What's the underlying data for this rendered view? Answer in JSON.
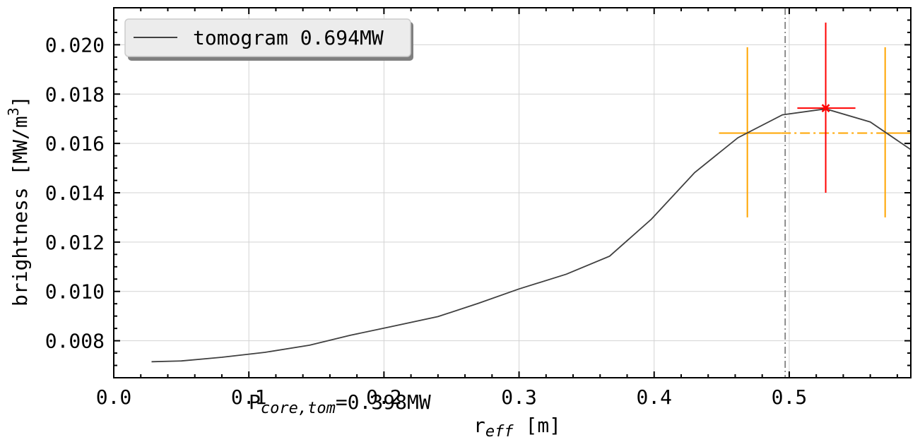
{
  "chart_data": {
    "type": "line",
    "title": "",
    "xlabel_base": "r",
    "xlabel_sub": "eff",
    "xlabel_tail": " [m]",
    "ylabel_base": "brightness [MW/m",
    "ylabel_sup": "3",
    "ylabel_tail": "]",
    "xlim": [
      0.0,
      0.59
    ],
    "ylim": [
      0.0065,
      0.0215
    ],
    "xticks": [
      0.0,
      0.1,
      0.2,
      0.3,
      0.4,
      0.5
    ],
    "xtick_labels": [
      "0.0",
      "0.1",
      "0.2",
      "0.3",
      "0.4",
      "0.5"
    ],
    "yticks": [
      0.008,
      0.01,
      0.012,
      0.014,
      0.016,
      0.018,
      0.02
    ],
    "ytick_labels": [
      "0.008",
      "0.010",
      "0.012",
      "0.014",
      "0.016",
      "0.018",
      "0.020"
    ],
    "grid": true,
    "legend_position": "top-left",
    "series": [
      {
        "name": "tomogram 0.694MW",
        "color": "#404040",
        "x": [
          0.028,
          0.05,
          0.08,
          0.112,
          0.145,
          0.175,
          0.205,
          0.24,
          0.27,
          0.3,
          0.335,
          0.367,
          0.398,
          0.43,
          0.462,
          0.495,
          0.527,
          0.56,
          0.59
        ],
        "y": [
          0.00715,
          0.00718,
          0.00733,
          0.00753,
          0.00782,
          0.00822,
          0.00857,
          0.00898,
          0.00952,
          0.0101,
          0.0107,
          0.01143,
          0.01293,
          0.01482,
          0.01623,
          0.01716,
          0.0174,
          0.01687,
          0.01575
        ]
      }
    ],
    "annotations": {
      "vline_x": 0.497,
      "vline_color": "#808080",
      "orange_color": "#ffa500",
      "red_color": "#ff0000",
      "orange_hline": {
        "y": 0.01642,
        "x_start": 0.448,
        "x_end": 0.59
      },
      "orange_vlines": [
        {
          "x": 0.469,
          "y_low": 0.013,
          "y_high": 0.0199
        },
        {
          "x": 0.571,
          "y_low": 0.013,
          "y_high": 0.0199
        }
      ],
      "red_point": {
        "x": 0.527,
        "y": 0.01743,
        "x_err_low": 0.506,
        "x_err_high": 0.549,
        "y_err_low": 0.014,
        "y_err_high": 0.0209
      },
      "core_text_base": "P",
      "core_text_sub": "core,tom",
      "core_text_tail": "=0.398MW"
    }
  }
}
